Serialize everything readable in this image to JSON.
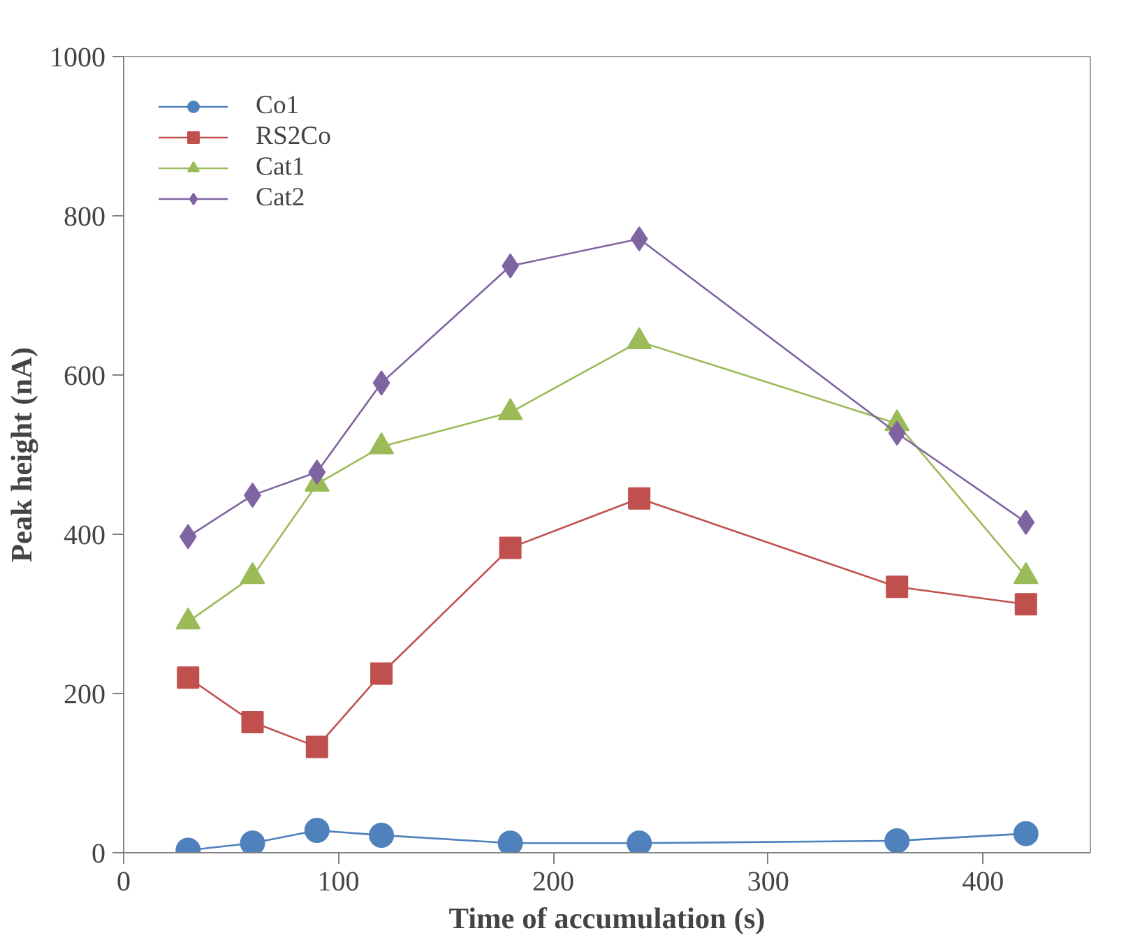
{
  "chart_data": {
    "type": "line",
    "xlabel": "Time of accumulation (s)",
    "ylabel": "Peak height (nA)",
    "x": [
      30,
      60,
      90,
      120,
      180,
      240,
      360,
      420
    ],
    "series": [
      {
        "name": "Co1",
        "color": "#4f81bd",
        "marker": "circle",
        "values": [
          3,
          12,
          28,
          22,
          12,
          12,
          15,
          24
        ]
      },
      {
        "name": "RS2Co",
        "color": "#c0504d",
        "marker": "square",
        "values": [
          220,
          164,
          133,
          225,
          383,
          445,
          334,
          312
        ]
      },
      {
        "name": "Cat1",
        "color": "#9bbb59",
        "marker": "triangle",
        "values": [
          290,
          347,
          463,
          510,
          553,
          642,
          539,
          347
        ]
      },
      {
        "name": "Cat2",
        "color": "#8064a2",
        "marker": "diamond",
        "values": [
          397,
          449,
          478,
          590,
          737,
          771,
          527,
          415
        ]
      }
    ],
    "xlim": [
      0,
      450
    ],
    "xticks": [
      0,
      100,
      200,
      300,
      400
    ],
    "ylim": [
      0,
      1000
    ],
    "yticks": [
      0,
      200,
      400,
      600,
      800,
      1000
    ],
    "grid": false,
    "legend": "top left"
  }
}
